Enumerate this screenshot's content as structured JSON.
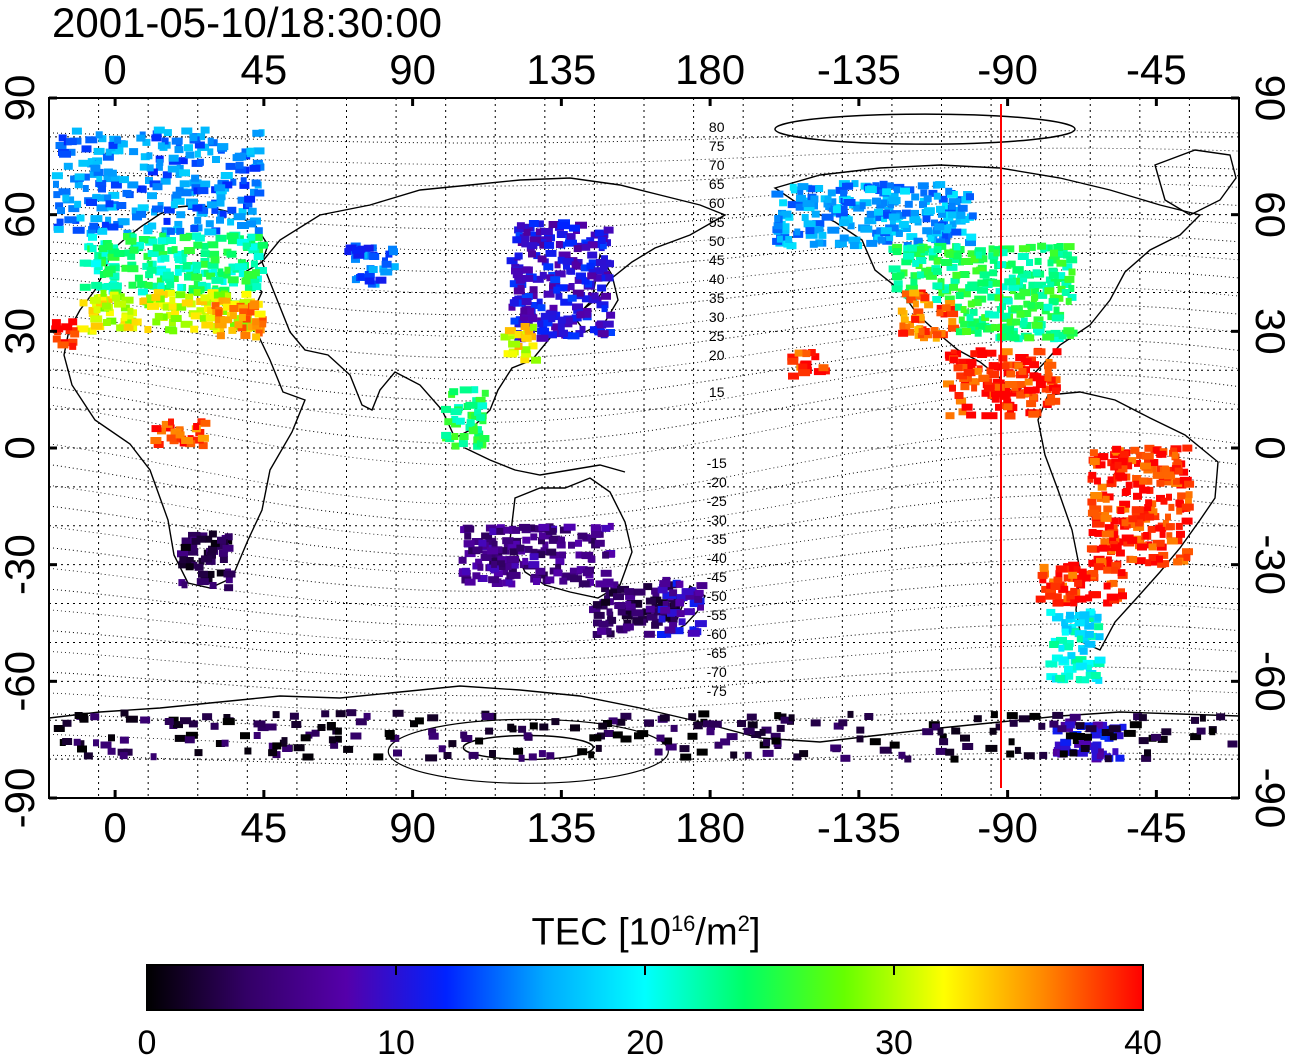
{
  "title": "2001-05-10/18:30:00",
  "chart_data": {
    "type": "heatmap",
    "projection": "equirectangular",
    "lon_range": [
      -20,
      340
    ],
    "lat_range": [
      -90,
      90
    ],
    "x_ticks": [
      0,
      45,
      90,
      135,
      180,
      -135,
      -90,
      -45
    ],
    "y_ticks": [
      90,
      60,
      30,
      0,
      -30,
      -60,
      -90
    ],
    "grid": true,
    "marker_longitude": -92,
    "marker_color": "#ff0000",
    "contour_labels": {
      "north": [
        "80",
        "75",
        "70",
        "65",
        "60",
        "55",
        "50",
        "45",
        "40",
        "35",
        "30",
        "25",
        "20",
        "15"
      ],
      "south": [
        "-15",
        "-20",
        "-25",
        "-30",
        "-35",
        "-40",
        "-45",
        "-50",
        "-55",
        "-60",
        "-65",
        "-70",
        "-75"
      ]
    },
    "colorbar": {
      "label_prefix": "TEC  [10",
      "label_exp1": "16",
      "label_mid": "/m",
      "label_exp2": "2",
      "label_suffix": "]",
      "min": 0,
      "max": 40,
      "ticks": [
        0,
        10,
        20,
        30,
        40
      ],
      "colors": [
        "#000000",
        "#330066",
        "#5500aa",
        "#0022ff",
        "#00aaff",
        "#00ffff",
        "#00ff66",
        "#66ff00",
        "#ffff00",
        "#ff8800",
        "#ff0000"
      ]
    },
    "regions": [
      {
        "lon0": -18,
        "lon1": 45,
        "lat0": 55,
        "lat1": 82,
        "value": 15
      },
      {
        "lon0": -10,
        "lon1": 45,
        "lat0": 40,
        "lat1": 55,
        "value": 23
      },
      {
        "lon0": -10,
        "lon1": 42,
        "lat0": 30,
        "lat1": 40,
        "value": 31
      },
      {
        "lon0": 30,
        "lon1": 45,
        "lat0": 28,
        "lat1": 38,
        "value": 35
      },
      {
        "lon0": -18,
        "lon1": -12,
        "lat0": 25,
        "lat1": 33,
        "value": 39
      },
      {
        "lon0": 12,
        "lon1": 28,
        "lat0": 0,
        "lat1": 7,
        "value": 38
      },
      {
        "lon0": 20,
        "lon1": 35,
        "lat0": -36,
        "lat1": -22,
        "value": 3
      },
      {
        "lon0": 70,
        "lon1": 85,
        "lat0": 42,
        "lat1": 52,
        "value": 14
      },
      {
        "lon0": 120,
        "lon1": 150,
        "lat0": 28,
        "lat1": 58,
        "value": 10
      },
      {
        "lon0": 118,
        "lon1": 128,
        "lat0": 22,
        "lat1": 32,
        "value": 32
      },
      {
        "lon0": 100,
        "lon1": 112,
        "lat0": 0,
        "lat1": 15,
        "value": 24
      },
      {
        "lon0": 145,
        "lon1": 170,
        "lat0": -48,
        "lat1": -35,
        "value": 4
      },
      {
        "lon0": 165,
        "lon1": 178,
        "lat0": -48,
        "lat1": -34,
        "value": 9
      },
      {
        "lon0": 200,
        "lon1": 260,
        "lat0": 52,
        "lat1": 68,
        "value": 16
      },
      {
        "lon0": 235,
        "lon1": 290,
        "lat0": 38,
        "lat1": 52,
        "value": 24
      },
      {
        "lon0": 238,
        "lon1": 255,
        "lat0": 28,
        "lat1": 40,
        "value": 37
      },
      {
        "lon0": 255,
        "lon1": 290,
        "lat0": 28,
        "lat1": 38,
        "value": 24
      },
      {
        "lon0": 252,
        "lon1": 285,
        "lat0": 8,
        "lat1": 25,
        "value": 39
      },
      {
        "lon0": 295,
        "lon1": 325,
        "lat0": -30,
        "lat1": 0,
        "value": 39
      },
      {
        "lon0": 280,
        "lon1": 305,
        "lat0": -40,
        "lat1": -30,
        "value": 39
      },
      {
        "lon0": 283,
        "lon1": 298,
        "lat0": -60,
        "lat1": -42,
        "value": 20
      },
      {
        "lon0": 285,
        "lon1": 305,
        "lat0": -80,
        "lat1": -70,
        "value": 10
      },
      {
        "lon0": -18,
        "lon1": 340,
        "lat0": -80,
        "lat1": -68,
        "value": 2
      },
      {
        "lon0": 205,
        "lon1": 215,
        "lat0": 18,
        "lat1": 25,
        "value": 39
      },
      {
        "lon0": 105,
        "lon1": 150,
        "lat0": -35,
        "lat1": -20,
        "value": 6
      }
    ]
  }
}
